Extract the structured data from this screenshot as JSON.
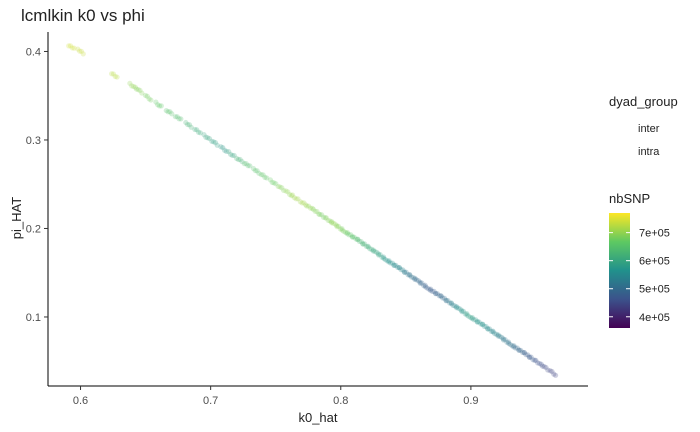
{
  "chart_data": {
    "type": "scatter",
    "title": "lcmlkin k0 vs phi",
    "xlabel": "k0_hat",
    "ylabel": "pi_HAT",
    "xlim": [
      0.575,
      0.99
    ],
    "ylim": [
      0.022,
      0.422
    ],
    "x_ticks": [
      0.6,
      0.7,
      0.8,
      0.9
    ],
    "x_tick_labels": [
      "0.6",
      "0.7",
      "0.8",
      "0.9"
    ],
    "y_ticks": [
      0.1,
      0.2,
      0.3,
      0.4
    ],
    "y_tick_labels": [
      "0.1",
      "0.2",
      "0.3",
      "0.4"
    ],
    "grid": false,
    "point_alpha": 0.25,
    "relationship": {
      "slope": -1.0,
      "intercept": 1.0
    },
    "series": [
      {
        "x": [
          0.593,
          0.6,
          0.626,
          0.64,
          0.645,
          0.652,
          0.66,
          0.668,
          0.675,
          0.683,
          0.69,
          0.697,
          0.703,
          0.71,
          0.716,
          0.722,
          0.728,
          0.735,
          0.741,
          0.748,
          0.754,
          0.76,
          0.765,
          0.771,
          0.776,
          0.781,
          0.786,
          0.791,
          0.795,
          0.799,
          0.803,
          0.807,
          0.811,
          0.815,
          0.819,
          0.823,
          0.827,
          0.831,
          0.835,
          0.839,
          0.843,
          0.847,
          0.851,
          0.855,
          0.859,
          0.863,
          0.867,
          0.871,
          0.875,
          0.879,
          0.883,
          0.887,
          0.891,
          0.895,
          0.899,
          0.903,
          0.907,
          0.911,
          0.915,
          0.919,
          0.923,
          0.927,
          0.931,
          0.935,
          0.939,
          0.943,
          0.947,
          0.952,
          0.957,
          0.963
        ],
        "y": [
          0.405,
          0.4,
          0.373,
          0.361,
          0.356,
          0.348,
          0.34,
          0.332,
          0.325,
          0.317,
          0.31,
          0.303,
          0.297,
          0.29,
          0.284,
          0.278,
          0.272,
          0.265,
          0.259,
          0.252,
          0.246,
          0.24,
          0.235,
          0.229,
          0.224,
          0.219,
          0.214,
          0.209,
          0.205,
          0.201,
          0.197,
          0.193,
          0.189,
          0.185,
          0.181,
          0.177,
          0.173,
          0.169,
          0.165,
          0.161,
          0.157,
          0.153,
          0.149,
          0.145,
          0.141,
          0.137,
          0.133,
          0.129,
          0.125,
          0.121,
          0.117,
          0.113,
          0.109,
          0.105,
          0.101,
          0.097,
          0.093,
          0.089,
          0.085,
          0.081,
          0.077,
          0.073,
          0.069,
          0.065,
          0.061,
          0.057,
          0.053,
          0.048,
          0.043,
          0.037
        ],
        "nbSNP": [
          740000,
          735000,
          725000,
          700000,
          690000,
          680000,
          665000,
          650000,
          640000,
          620000,
          610000,
          600000,
          590000,
          580000,
          600000,
          620000,
          640000,
          650000,
          660000,
          670000,
          690000,
          700000,
          710000,
          710000,
          700000,
          690000,
          680000,
          690000,
          700000,
          690000,
          680000,
          660000,
          650000,
          630000,
          620000,
          610000,
          600000,
          590000,
          570000,
          560000,
          550000,
          540000,
          520000,
          510000,
          500000,
          490000,
          480000,
          480000,
          490000,
          500000,
          520000,
          540000,
          560000,
          580000,
          590000,
          580000,
          570000,
          560000,
          550000,
          540000,
          530000,
          520000,
          510000,
          500000,
          490000,
          480000,
          470000,
          460000,
          450000,
          440000
        ]
      }
    ],
    "legend": {
      "placement": "right",
      "shape_title": "dyad_group",
      "shape_entries": [
        "inter",
        "intra"
      ],
      "color_title": "nbSNP",
      "color_scale": "viridis",
      "color_range": [
        360000,
        770000
      ],
      "color_breaks": [
        400000,
        500000,
        600000,
        700000
      ],
      "color_labels": [
        "4e+05",
        "5e+05",
        "6e+05",
        "7e+05"
      ]
    }
  }
}
